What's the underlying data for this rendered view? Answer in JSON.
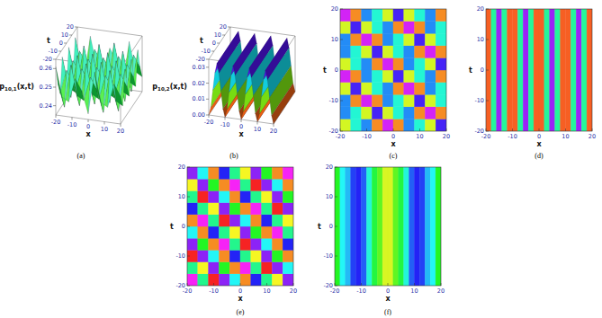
{
  "chart_data": [
    {
      "type": "surface",
      "caption": "(a)",
      "xlabel": "x",
      "ylabel": "t",
      "zlabel": [
        "p",
        "10,1",
        "(x,t)"
      ],
      "xlim": [
        -20,
        20
      ],
      "ylim": [
        -20,
        20
      ],
      "zlim": [
        0.235,
        0.265
      ],
      "xticks": [
        -20,
        -10,
        0,
        10,
        20
      ],
      "yticks": [
        -20,
        -10,
        0,
        10,
        20
      ],
      "zticks": [
        0.24,
        0.25,
        0.26
      ],
      "x": [
        -20,
        -16,
        -12,
        -8,
        -4,
        0,
        4,
        8,
        12,
        16,
        20
      ],
      "y": [
        -20,
        -16,
        -12,
        -8,
        -4,
        0,
        4,
        8,
        12,
        16,
        20
      ],
      "z": [
        [
          0.261,
          0.245,
          0.243,
          0.256,
          0.25,
          0.238,
          0.261,
          0.245,
          0.243,
          0.256,
          0.25
        ],
        [
          0.25,
          0.238,
          0.261,
          0.245,
          0.243,
          0.256,
          0.25,
          0.238,
          0.261,
          0.245,
          0.243
        ],
        [
          0.243,
          0.256,
          0.25,
          0.238,
          0.261,
          0.245,
          0.243,
          0.256,
          0.25,
          0.238,
          0.261
        ],
        [
          0.261,
          0.245,
          0.243,
          0.256,
          0.25,
          0.238,
          0.261,
          0.245,
          0.243,
          0.256,
          0.25
        ],
        [
          0.25,
          0.238,
          0.261,
          0.245,
          0.243,
          0.256,
          0.25,
          0.238,
          0.261,
          0.245,
          0.243
        ],
        [
          0.243,
          0.256,
          0.25,
          0.238,
          0.261,
          0.245,
          0.243,
          0.256,
          0.25,
          0.238,
          0.261
        ],
        [
          0.261,
          0.245,
          0.243,
          0.256,
          0.25,
          0.238,
          0.261,
          0.245,
          0.243,
          0.256,
          0.25
        ],
        [
          0.25,
          0.238,
          0.261,
          0.245,
          0.243,
          0.256,
          0.25,
          0.238,
          0.261,
          0.245,
          0.243
        ],
        [
          0.243,
          0.256,
          0.25,
          0.238,
          0.261,
          0.245,
          0.243,
          0.256,
          0.25,
          0.238,
          0.261
        ],
        [
          0.261,
          0.245,
          0.243,
          0.256,
          0.25,
          0.238,
          0.261,
          0.245,
          0.243,
          0.256,
          0.25
        ],
        [
          0.25,
          0.238,
          0.261,
          0.245,
          0.243,
          0.256,
          0.25,
          0.238,
          0.261,
          0.245,
          0.243
        ]
      ]
    },
    {
      "type": "surface",
      "caption": "(b)",
      "xlabel": "x",
      "ylabel": "t",
      "zlabel": [
        "p",
        "10,2",
        "(x,t)"
      ],
      "xlim": [
        -20,
        20
      ],
      "ylim": [
        -20,
        20
      ],
      "zlim": [
        0,
        0.035
      ],
      "xticks": [
        -20,
        -10,
        0,
        10,
        20
      ],
      "yticks": [
        -20,
        -10,
        0,
        10,
        20
      ],
      "zticks": [
        {
          "value": 0,
          "label": "0.00"
        },
        0.01,
        0.02,
        0.03
      ],
      "x": [
        -20,
        -18.75,
        -17.5,
        -16.25,
        -15,
        -13.75,
        -12.5,
        -11.25,
        -10,
        -8.75,
        -7.5,
        -6.25,
        -5,
        -3.75,
        -2.5,
        -1.25,
        0,
        1.25,
        2.5,
        3.75,
        5,
        6.25,
        7.5,
        8.75,
        10,
        11.25,
        12.5,
        13.75,
        15,
        16.25,
        17.5,
        18.75,
        20
      ],
      "y": [
        -20,
        20
      ],
      "z": [
        [
          0,
          0.005,
          0.016,
          0.027,
          0.033,
          0.027,
          0.016,
          0.005,
          0,
          0.005,
          0.016,
          0.027,
          0.033,
          0.027,
          0.016,
          0.005,
          0,
          0.005,
          0.016,
          0.027,
          0.033,
          0.027,
          0.016,
          0.005,
          0,
          0.005,
          0.016,
          0.027,
          0.033,
          0.027,
          0.016,
          0.005,
          0
        ],
        [
          0,
          0.005,
          0.016,
          0.027,
          0.033,
          0.027,
          0.016,
          0.005,
          0,
          0.005,
          0.016,
          0.027,
          0.033,
          0.027,
          0.016,
          0.005,
          0,
          0.005,
          0.016,
          0.027,
          0.033,
          0.027,
          0.016,
          0.005,
          0,
          0.005,
          0.016,
          0.027,
          0.033,
          0.027,
          0.016,
          0.005,
          0
        ]
      ]
    },
    {
      "type": "heatmap",
      "caption": "(c)",
      "xlabel": "x",
      "ylabel": "t",
      "xlim": [
        -20,
        20
      ],
      "ylim": [
        -20,
        20
      ],
      "xticks": [
        -20,
        -10,
        0,
        10,
        20
      ],
      "yticks": [
        -20,
        -10,
        0,
        10,
        20
      ],
      "zlim": [
        0.235,
        0.265
      ],
      "x": [
        -18,
        -14,
        -10,
        -6,
        -2,
        2,
        6,
        10,
        14,
        18
      ],
      "y": [
        -18,
        -14,
        -10,
        -6,
        -2,
        2,
        6,
        10,
        14,
        18
      ],
      "cells": [
        [
          0.242,
          0.252,
          0.256,
          0.238,
          0.264,
          0.238,
          0.256,
          0.252,
          0.242,
          0.26
        ],
        [
          0.256,
          0.252,
          0.242,
          0.26,
          0.242,
          0.252,
          0.256,
          0.238,
          0.264,
          0.238
        ],
        [
          0.256,
          0.238,
          0.264,
          0.238,
          0.256,
          0.252,
          0.242,
          0.26,
          0.242,
          0.252
        ],
        [
          0.242,
          0.26,
          0.242,
          0.252,
          0.256,
          0.238,
          0.264,
          0.238,
          0.256,
          0.252
        ],
        [
          0.264,
          0.238,
          0.256,
          0.252,
          0.242,
          0.26,
          0.242,
          0.252,
          0.256,
          0.238
        ],
        [
          0.242,
          0.252,
          0.256,
          0.238,
          0.264,
          0.238,
          0.256,
          0.252,
          0.242,
          0.26
        ],
        [
          0.256,
          0.252,
          0.242,
          0.26,
          0.242,
          0.252,
          0.256,
          0.238,
          0.264,
          0.238
        ],
        [
          0.256,
          0.238,
          0.264,
          0.238,
          0.256,
          0.252,
          0.242,
          0.26,
          0.242,
          0.252
        ],
        [
          0.242,
          0.26,
          0.242,
          0.252,
          0.256,
          0.238,
          0.264,
          0.238,
          0.256,
          0.252
        ],
        [
          0.264,
          0.238,
          0.256,
          0.252,
          0.242,
          0.26,
          0.242,
          0.252,
          0.256,
          0.238
        ]
      ]
    },
    {
      "type": "heatmap",
      "caption": "(d)",
      "xlabel": "x",
      "ylabel": "t",
      "xlim": [
        -20,
        20
      ],
      "ylim": [
        -20,
        20
      ],
      "xticks": [
        -20,
        -10,
        0,
        10,
        20
      ],
      "yticks": [
        -20,
        -10,
        0,
        10,
        20
      ],
      "zlim": [
        0,
        0.035
      ],
      "x": [
        -19,
        -17,
        -15,
        -13,
        -11,
        -9,
        -7,
        -5,
        -3,
        -1,
        1,
        3,
        5,
        7,
        9,
        11,
        13,
        15,
        17,
        19
      ],
      "y": [
        0
      ],
      "cells": [
        [
          0.002,
          0.018,
          0.032,
          0.018,
          0.002,
          0.002,
          0.018,
          0.032,
          0.018,
          0.002,
          0.002,
          0.018,
          0.032,
          0.018,
          0.002,
          0.002,
          0.018,
          0.032,
          0.018,
          0.002
        ]
      ]
    },
    {
      "type": "heatmap",
      "caption": "(e)",
      "xlabel": "x",
      "ylabel": "t",
      "xlim": [
        -20,
        20
      ],
      "ylim": [
        -20,
        20
      ],
      "xticks": [
        -20,
        -10,
        0,
        10,
        20
      ],
      "yticks": [
        -20,
        -10,
        0,
        10,
        20
      ],
      "zlim": [
        0.235,
        0.265
      ],
      "x": [
        -18,
        -14,
        -10,
        -6,
        -2,
        2,
        6,
        10,
        14,
        18
      ],
      "y": [
        -18,
        -14,
        -10,
        -6,
        -2,
        2,
        6,
        10,
        14,
        18
      ],
      "cells": [
        [
          0.265,
          0.25,
          0.235,
          0.262,
          0.253,
          0.238,
          0.259,
          0.25,
          0.241,
          0.262
        ],
        [
          0.25,
          0.241,
          0.262,
          0.247,
          0.238,
          0.265,
          0.25,
          0.235,
          0.262,
          0.253
        ],
        [
          0.235,
          0.262,
          0.253,
          0.238,
          0.259,
          0.25,
          0.241,
          0.262,
          0.247,
          0.238
        ],
        [
          0.262,
          0.247,
          0.238,
          0.265,
          0.25,
          0.235,
          0.262,
          0.253,
          0.238,
          0.259
        ],
        [
          0.253,
          0.238,
          0.259,
          0.25,
          0.241,
          0.262,
          0.247,
          0.238,
          0.265,
          0.25
        ],
        [
          0.238,
          0.265,
          0.25,
          0.235,
          0.262,
          0.253,
          0.238,
          0.259,
          0.25,
          0.241
        ],
        [
          0.259,
          0.25,
          0.241,
          0.262,
          0.247,
          0.238,
          0.265,
          0.25,
          0.235,
          0.262
        ],
        [
          0.25,
          0.235,
          0.262,
          0.253,
          0.238,
          0.259,
          0.25,
          0.241,
          0.262,
          0.247
        ],
        [
          0.241,
          0.262,
          0.247,
          0.238,
          0.265,
          0.25,
          0.235,
          0.262,
          0.253,
          0.238
        ],
        [
          0.262,
          0.253,
          0.238,
          0.259,
          0.25,
          0.241,
          0.262,
          0.247,
          0.238,
          0.265
        ]
      ]
    },
    {
      "type": "heatmap",
      "caption": "(f)",
      "xlabel": "x",
      "ylabel": "t",
      "xlim": [
        -20,
        20
      ],
      "ylim": [
        -20,
        20
      ],
      "xticks": [
        -20,
        -10,
        0,
        10,
        20
      ],
      "yticks": [
        -20,
        -10,
        0,
        10,
        20
      ],
      "zlim": [
        0,
        0.035
      ],
      "x": [
        -19,
        -17,
        -15,
        -13,
        -11,
        -9,
        -7,
        -5,
        -3,
        -1,
        1,
        3,
        5,
        7,
        9,
        11,
        13,
        15,
        17,
        19
      ],
      "y": [
        0
      ],
      "cells": [
        [
          0.014,
          0.021,
          0.023,
          0.027,
          0.028,
          0.026,
          0.02,
          0.015,
          0.012,
          0.008,
          0.008,
          0.012,
          0.015,
          0.02,
          0.026,
          0.028,
          0.027,
          0.023,
          0.021,
          0.014
        ]
      ]
    }
  ]
}
